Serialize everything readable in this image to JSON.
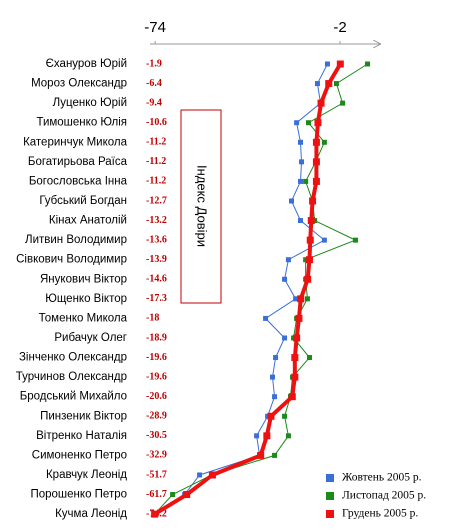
{
  "chart_data": {
    "type": "line",
    "orientation": "horizontal",
    "annotation": "Індекс Довіри",
    "categories": [
      "Єхануров Юрій",
      "Мороз Олександр",
      "Луценко Юрій",
      "Тимошенко Юлія",
      "Катеринчук Микола",
      "Богатирьова Раїса",
      "Богословська Інна",
      "Губський Богдан",
      "Кінах Анатолій",
      "Литвин Володимир",
      "Сівкович Володимир",
      "Янукович  Віктор",
      "Ющенко Віктор",
      "Томенко Микола",
      "Рибачук Олег",
      "Зінченко Олександр",
      "Турчинов Олександр",
      "Бродський Михайло",
      "Пинзеник Віктор",
      "Вітренко Наталія",
      "Симоненко Петро",
      "Кравчук Леонід",
      "Порошенко Петро",
      "Кучма Леонід"
    ],
    "series": [
      {
        "name": "Жовтень 2005 р.",
        "color": "#3a6fd8",
        "values": [
          -6.9,
          -10.8,
          -9.6,
          -18.9,
          -17.4,
          -17.0,
          -17.4,
          -20.9,
          -17.4,
          -8.1,
          -22.1,
          -23.6,
          -19.3,
          -31.0,
          -23.6,
          -27.1,
          -28.3,
          -27.5,
          -30.2,
          -34.5,
          -33.3,
          -56.7,
          -62.5,
          -74.2
        ]
      },
      {
        "name": "Листопад 2005 р.",
        "color": "#1a8a1a",
        "values": [
          8.7,
          -3.4,
          -1.0,
          -14.3,
          -8.1,
          -11.5,
          -15.4,
          -12.7,
          -11.9,
          4.0,
          -15.4,
          -15.4,
          -14.7,
          -18.9,
          -20.1,
          -13.9,
          -20.5,
          -21.3,
          -23.6,
          -22.1,
          -27.5,
          -52.0,
          -67.2,
          -74.2
        ]
      },
      {
        "name": "Грудень 2005 р.",
        "color": "#ee1111",
        "values": [
          -1.9,
          -6.4,
          -9.4,
          -10.6,
          -11.2,
          -11.2,
          -11.2,
          -12.7,
          -13.2,
          -13.6,
          -13.9,
          -14.6,
          -17.3,
          -18.0,
          -18.9,
          -19.6,
          -19.6,
          -20.6,
          -28.9,
          -30.5,
          -32.9,
          -51.7,
          -61.7,
          -74.2
        ]
      }
    ],
    "xlim": [
      -76,
      12
    ],
    "xticks": [
      -74,
      -2
    ],
    "legend": "bottom-right"
  }
}
